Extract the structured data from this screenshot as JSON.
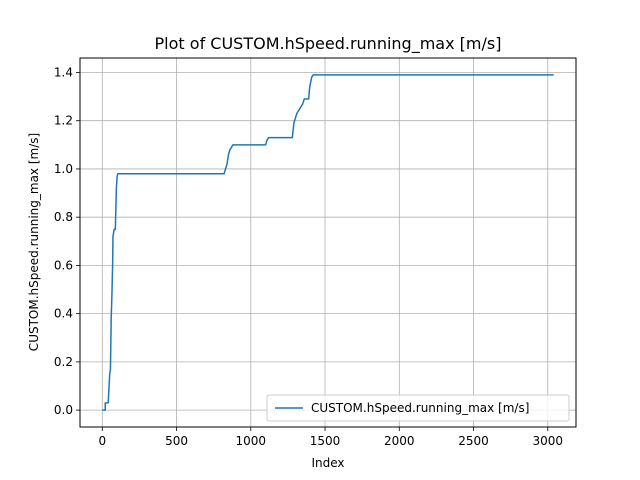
{
  "chart_data": {
    "type": "line",
    "title": "Plot of CUSTOM.hSpeed.running_max [m/s]",
    "xlabel": "Index",
    "ylabel": "CUSTOM.hSpeed.running_max [m/s]",
    "xlim": [
      -150,
      3190
    ],
    "ylim": [
      -0.07,
      1.46
    ],
    "xticks": [
      0,
      500,
      1000,
      1500,
      2000,
      2500,
      3000
    ],
    "yticks": [
      0.0,
      0.2,
      0.4,
      0.6,
      0.8,
      1.0,
      1.2,
      1.4
    ],
    "xtick_labels": [
      "0",
      "500",
      "1000",
      "1500",
      "2000",
      "2500",
      "3000"
    ],
    "ytick_labels": [
      "0.0",
      "0.2",
      "0.4",
      "0.6",
      "0.8",
      "1.0",
      "1.2",
      "1.4"
    ],
    "grid": true,
    "legend_position": "lower-right",
    "series": [
      {
        "name": "CUSTOM.hSpeed.running_max [m/s]",
        "color": "#1f77b4",
        "x": [
          0,
          10,
          20,
          20,
          30,
          40,
          45,
          50,
          55,
          60,
          65,
          70,
          72,
          80,
          88,
          90,
          95,
          100,
          105,
          110,
          820,
          830,
          840,
          850,
          860,
          870,
          880,
          890,
          900,
          1100,
          1110,
          1120,
          1280,
          1285,
          1290,
          1300,
          1310,
          1330,
          1350,
          1360,
          1380,
          1390,
          1395,
          1400,
          1410,
          1420,
          1430,
          1450,
          3040
        ],
        "y": [
          0.0,
          0.0,
          0.0,
          0.03,
          0.03,
          0.03,
          0.09,
          0.15,
          0.17,
          0.38,
          0.48,
          0.61,
          0.72,
          0.75,
          0.75,
          0.8,
          0.92,
          0.97,
          0.98,
          0.98,
          0.98,
          1.0,
          1.02,
          1.06,
          1.08,
          1.09,
          1.1,
          1.1,
          1.1,
          1.1,
          1.12,
          1.13,
          1.13,
          1.16,
          1.19,
          1.21,
          1.23,
          1.25,
          1.27,
          1.29,
          1.29,
          1.29,
          1.33,
          1.35,
          1.38,
          1.39,
          1.39,
          1.39,
          1.39
        ]
      }
    ]
  }
}
